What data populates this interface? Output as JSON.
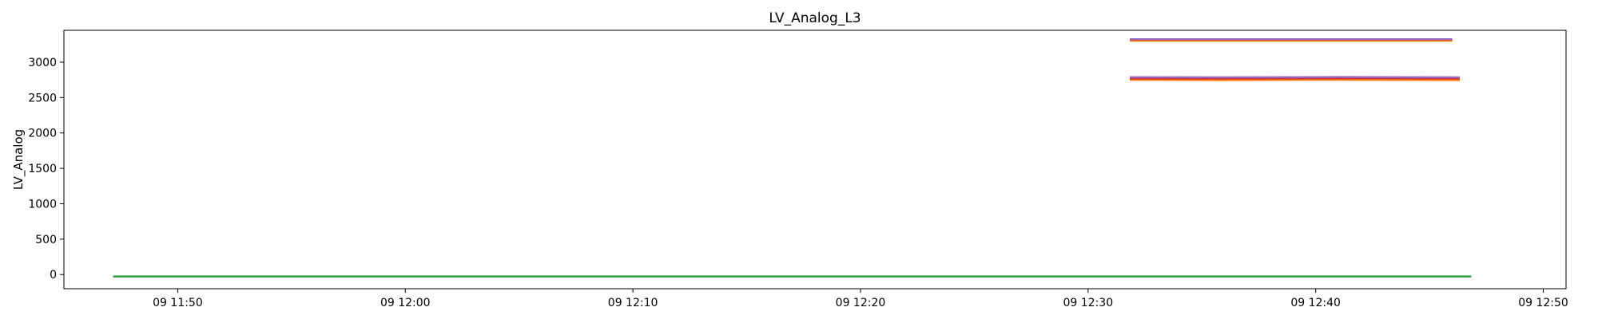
{
  "chart_data": {
    "type": "line",
    "title": "LV_Analog_L3",
    "xlabel": "",
    "ylabel": "LV_Analog",
    "x_axis": {
      "type": "time",
      "range": [
        "2000-01-09T11:45:00",
        "2000-01-09T12:51:00"
      ],
      "ticks": [
        {
          "value": "2000-01-09T11:50:00",
          "label": "09 11:50"
        },
        {
          "value": "2000-01-09T12:00:00",
          "label": "09 12:00"
        },
        {
          "value": "2000-01-09T12:10:00",
          "label": "09 12:10"
        },
        {
          "value": "2000-01-09T12:20:00",
          "label": "09 12:20"
        },
        {
          "value": "2000-01-09T12:30:00",
          "label": "09 12:30"
        },
        {
          "value": "2000-01-09T12:40:00",
          "label": "09 12:40"
        },
        {
          "value": "2000-01-09T12:50:00",
          "label": "09 12:50"
        }
      ]
    },
    "y_axis": {
      "range": [
        -200,
        3450
      ],
      "ticks": [
        0,
        500,
        1000,
        1500,
        2000,
        2500,
        3000
      ]
    },
    "grid": false,
    "legend": "none",
    "series": [
      {
        "color": "#17becf",
        "points": [
          [
            "2000-01-09T11:47:10",
            -25
          ],
          [
            "2000-01-09T12:46:50",
            -25
          ]
        ]
      },
      {
        "color": "#2ca02c",
        "points": [
          [
            "2000-01-09T11:47:10",
            -28
          ],
          [
            "2000-01-09T12:46:50",
            -28
          ]
        ]
      },
      {
        "color": "#ff7f0e",
        "points": [
          [
            "2000-01-09T12:31:50",
            2750
          ],
          [
            "2000-01-09T12:36:00",
            2745
          ],
          [
            "2000-01-09T12:41:00",
            2750
          ],
          [
            "2000-01-09T12:46:20",
            2745
          ]
        ]
      },
      {
        "color": "#d62728",
        "points": [
          [
            "2000-01-09T12:31:50",
            2770
          ],
          [
            "2000-01-09T12:36:00",
            2768
          ],
          [
            "2000-01-09T12:41:00",
            2772
          ],
          [
            "2000-01-09T12:46:20",
            2768
          ]
        ]
      },
      {
        "color": "#e377c2",
        "points": [
          [
            "2000-01-09T12:31:50",
            2790
          ],
          [
            "2000-01-09T12:36:00",
            2788
          ],
          [
            "2000-01-09T12:41:00",
            2792
          ],
          [
            "2000-01-09T12:46:20",
            2788
          ]
        ]
      },
      {
        "color": "#9467bd",
        "points": [
          [
            "2000-01-09T12:31:50",
            2785
          ],
          [
            "2000-01-09T12:36:00",
            2783
          ],
          [
            "2000-01-09T12:41:00",
            2786
          ],
          [
            "2000-01-09T12:46:20",
            2783
          ]
        ]
      },
      {
        "color": "#bcbd22",
        "points": [
          [
            "2000-01-09T12:31:50",
            3300
          ],
          [
            "2000-01-09T12:46:00",
            3300
          ]
        ]
      },
      {
        "color": "#ff7f0e",
        "points": [
          [
            "2000-01-09T12:31:50",
            3305
          ],
          [
            "2000-01-09T12:46:00",
            3305
          ]
        ]
      },
      {
        "color": "#d62728",
        "points": [
          [
            "2000-01-09T12:31:50",
            3320
          ],
          [
            "2000-01-09T12:46:00",
            3320
          ]
        ]
      },
      {
        "color": "#9467bd",
        "points": [
          [
            "2000-01-09T12:31:50",
            3325
          ],
          [
            "2000-01-09T12:46:00",
            3325
          ]
        ]
      }
    ]
  }
}
